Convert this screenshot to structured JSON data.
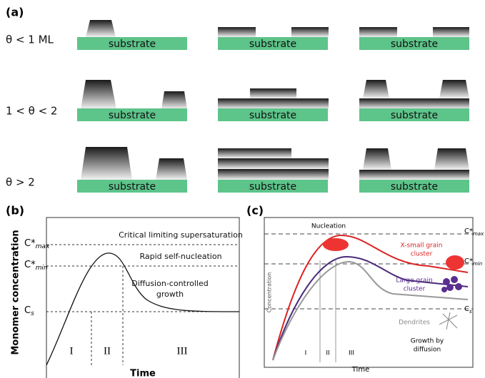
{
  "panel_a": {
    "label": "(a)",
    "rows": [
      {
        "label": "θ < 1 ML",
        "substrates": [
          "substrate",
          "substrate",
          "substrate"
        ]
      },
      {
        "label": "1 < θ < 2",
        "substrates": [
          "substrate",
          "substrate",
          "substrate"
        ]
      },
      {
        "label": "θ > 2",
        "substrates": [
          "substrate",
          "substrate",
          "substrate"
        ]
      }
    ]
  },
  "panel_b": {
    "label": "(b)",
    "y_label": "Monomer concentration",
    "x_label": "Time",
    "levels": [
      {
        "base": "C*",
        "sub": "max",
        "text": "Critical limiting supersaturation"
      },
      {
        "base": "C*",
        "sub": "min",
        "text": "Rapid self-nucleation"
      },
      {
        "base": "C",
        "sub": "s"
      }
    ],
    "growth": [
      "Diffusion-controlled",
      "growth"
    ],
    "stages": [
      "I",
      "II",
      "III"
    ]
  },
  "panel_c": {
    "label": "(c)",
    "y_label": "Concentration",
    "x_label": "Time",
    "nucleation": "Nucleation",
    "levels": [
      {
        "base": "C*",
        "sub": "max"
      },
      {
        "base": "C*",
        "sub": "min"
      },
      {
        "base": "C",
        "sub": "s"
      }
    ],
    "xsmall": [
      "X-small grain",
      "cluster"
    ],
    "large": [
      "Large grain",
      "cluster"
    ],
    "dendrites": "Dendrites",
    "growth": [
      "Growth by",
      "diffusion"
    ],
    "stages": [
      "I",
      "II",
      "III"
    ]
  }
}
